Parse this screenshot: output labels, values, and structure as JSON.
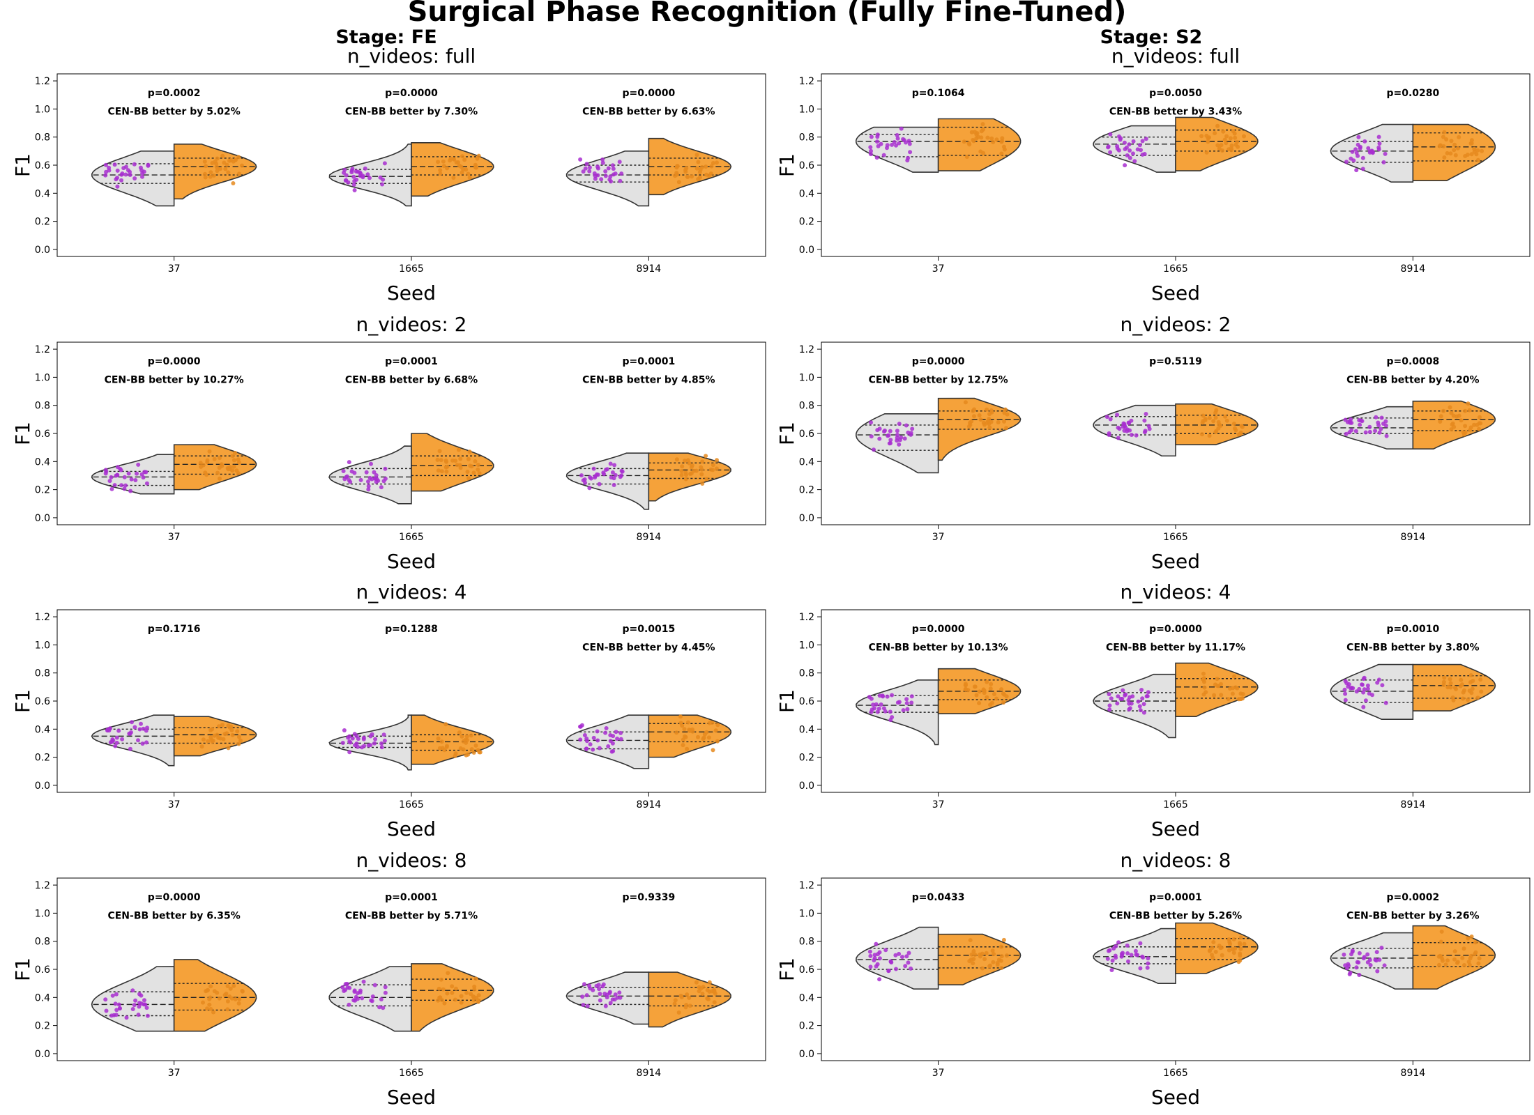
{
  "figure": {
    "suptitle": "Surgical Phase Recognition (Fully Fine-Tuned)",
    "colors": {
      "baseline": "#e2e2e2",
      "cen_bb": "#f5a23a",
      "baseline_points": "#a82ed0",
      "cen_bb_points": "#e58a1f"
    }
  },
  "chart_data": [
    {
      "type": "split-violin",
      "stage": "Stage: FE",
      "title": "n_videos: full",
      "xlabel": "Seed",
      "ylabel": "F1",
      "ylim": [
        -0.05,
        1.25
      ],
      "yticks": [
        0.0,
        0.2,
        0.4,
        0.6,
        0.8,
        1.0,
        1.2
      ],
      "categories": [
        "37",
        "1665",
        "8914"
      ],
      "groups": [
        {
          "seed": "37",
          "p": "p=0.0002",
          "note": "CEN-BB better by 5.02%",
          "left": {
            "min": 0.31,
            "max": 0.7,
            "q1": 0.47,
            "median": 0.53,
            "q3": 0.61
          },
          "right": {
            "min": 0.36,
            "max": 0.75,
            "q1": 0.53,
            "median": 0.59,
            "q3": 0.65
          }
        },
        {
          "seed": "1665",
          "p": "p=0.0000",
          "note": "CEN-BB better by 7.30%",
          "left": {
            "min": 0.31,
            "max": 0.75,
            "q1": 0.47,
            "median": 0.52,
            "q3": 0.57
          },
          "right": {
            "min": 0.38,
            "max": 0.76,
            "q1": 0.53,
            "median": 0.59,
            "q3": 0.66
          }
        },
        {
          "seed": "8914",
          "p": "p=0.0000",
          "note": "CEN-BB better by 6.63%",
          "left": {
            "min": 0.31,
            "max": 0.7,
            "q1": 0.48,
            "median": 0.53,
            "q3": 0.6
          },
          "right": {
            "min": 0.39,
            "max": 0.79,
            "q1": 0.53,
            "median": 0.59,
            "q3": 0.65
          }
        }
      ]
    },
    {
      "type": "split-violin",
      "stage": "Stage: S2",
      "title": "n_videos: full",
      "xlabel": "Seed",
      "ylabel": "F1",
      "ylim": [
        -0.05,
        1.25
      ],
      "yticks": [
        0.0,
        0.2,
        0.4,
        0.6,
        0.8,
        1.0,
        1.2
      ],
      "categories": [
        "37",
        "1665",
        "8914"
      ],
      "groups": [
        {
          "seed": "37",
          "p": "p=0.1064",
          "note": "",
          "left": {
            "min": 0.55,
            "max": 0.87,
            "q1": 0.66,
            "median": 0.77,
            "q3": 0.82
          },
          "right": {
            "min": 0.56,
            "max": 0.93,
            "q1": 0.67,
            "median": 0.77,
            "q3": 0.87
          }
        },
        {
          "seed": "1665",
          "p": "p=0.0050",
          "note": "CEN-BB better by 3.43%",
          "left": {
            "min": 0.55,
            "max": 0.88,
            "q1": 0.67,
            "median": 0.75,
            "q3": 0.8
          },
          "right": {
            "min": 0.56,
            "max": 0.94,
            "q1": 0.7,
            "median": 0.77,
            "q3": 0.85
          }
        },
        {
          "seed": "8914",
          "p": "p=0.0280",
          "note": "",
          "left": {
            "min": 0.48,
            "max": 0.89,
            "q1": 0.62,
            "median": 0.7,
            "q3": 0.77
          },
          "right": {
            "min": 0.49,
            "max": 0.89,
            "q1": 0.63,
            "median": 0.73,
            "q3": 0.83
          }
        }
      ]
    },
    {
      "type": "split-violin",
      "stage": "",
      "title": "n_videos: 2",
      "xlabel": "Seed",
      "ylabel": "F1",
      "ylim": [
        -0.05,
        1.25
      ],
      "yticks": [
        0.0,
        0.2,
        0.4,
        0.6,
        0.8,
        1.0,
        1.2
      ],
      "categories": [
        "37",
        "1665",
        "8914"
      ],
      "groups": [
        {
          "seed": "37",
          "p": "p=0.0000",
          "note": "CEN-BB better by 10.27%",
          "left": {
            "min": 0.17,
            "max": 0.45,
            "q1": 0.23,
            "median": 0.29,
            "q3": 0.33
          },
          "right": {
            "min": 0.2,
            "max": 0.52,
            "q1": 0.31,
            "median": 0.38,
            "q3": 0.44
          }
        },
        {
          "seed": "1665",
          "p": "p=0.0001",
          "note": "CEN-BB better by 6.68%",
          "left": {
            "min": 0.1,
            "max": 0.51,
            "q1": 0.24,
            "median": 0.29,
            "q3": 0.35
          },
          "right": {
            "min": 0.19,
            "max": 0.6,
            "q1": 0.3,
            "median": 0.37,
            "q3": 0.44
          }
        },
        {
          "seed": "8914",
          "p": "p=0.0001",
          "note": "CEN-BB better by 4.85%",
          "left": {
            "min": 0.06,
            "max": 0.46,
            "q1": 0.24,
            "median": 0.3,
            "q3": 0.35
          },
          "right": {
            "min": 0.12,
            "max": 0.46,
            "q1": 0.28,
            "median": 0.34,
            "q3": 0.39
          }
        }
      ]
    },
    {
      "type": "split-violin",
      "stage": "",
      "title": "n_videos: 2",
      "xlabel": "Seed",
      "ylabel": "F1",
      "ylim": [
        -0.05,
        1.25
      ],
      "yticks": [
        0.0,
        0.2,
        0.4,
        0.6,
        0.8,
        1.0,
        1.2
      ],
      "categories": [
        "37",
        "1665",
        "8914"
      ],
      "groups": [
        {
          "seed": "37",
          "p": "p=0.0000",
          "note": "CEN-BB better by 12.75%",
          "left": {
            "min": 0.32,
            "max": 0.74,
            "q1": 0.48,
            "median": 0.59,
            "q3": 0.66
          },
          "right": {
            "min": 0.41,
            "max": 0.85,
            "q1": 0.63,
            "median": 0.7,
            "q3": 0.76
          }
        },
        {
          "seed": "1665",
          "p": "p=0.5119",
          "note": "",
          "left": {
            "min": 0.44,
            "max": 0.8,
            "q1": 0.59,
            "median": 0.66,
            "q3": 0.72
          },
          "right": {
            "min": 0.52,
            "max": 0.81,
            "q1": 0.6,
            "median": 0.66,
            "q3": 0.73
          }
        },
        {
          "seed": "8914",
          "p": "p=0.0008",
          "note": "CEN-BB better by 4.20%",
          "left": {
            "min": 0.49,
            "max": 0.79,
            "q1": 0.6,
            "median": 0.64,
            "q3": 0.71
          },
          "right": {
            "min": 0.49,
            "max": 0.83,
            "q1": 0.62,
            "median": 0.7,
            "q3": 0.76
          }
        }
      ]
    },
    {
      "type": "split-violin",
      "stage": "",
      "title": "n_videos: 4",
      "xlabel": "Seed",
      "ylabel": "F1",
      "ylim": [
        -0.05,
        1.25
      ],
      "yticks": [
        0.0,
        0.2,
        0.4,
        0.6,
        0.8,
        1.0,
        1.2
      ],
      "categories": [
        "37",
        "1665",
        "8914"
      ],
      "groups": [
        {
          "seed": "37",
          "p": "p=0.1716",
          "note": "",
          "left": {
            "min": 0.14,
            "max": 0.5,
            "q1": 0.3,
            "median": 0.35,
            "q3": 0.4
          },
          "right": {
            "min": 0.21,
            "max": 0.49,
            "q1": 0.3,
            "median": 0.36,
            "q3": 0.41
          }
        },
        {
          "seed": "1665",
          "p": "p=0.1288",
          "note": "",
          "left": {
            "min": 0.11,
            "max": 0.5,
            "q1": 0.27,
            "median": 0.3,
            "q3": 0.35
          },
          "right": {
            "min": 0.15,
            "max": 0.5,
            "q1": 0.25,
            "median": 0.31,
            "q3": 0.36
          }
        },
        {
          "seed": "8914",
          "p": "p=0.0015",
          "note": "CEN-BB better by 4.45%",
          "left": {
            "min": 0.12,
            "max": 0.5,
            "q1": 0.26,
            "median": 0.32,
            "q3": 0.38
          },
          "right": {
            "min": 0.2,
            "max": 0.5,
            "q1": 0.31,
            "median": 0.38,
            "q3": 0.44
          }
        }
      ]
    },
    {
      "type": "split-violin",
      "stage": "",
      "title": "n_videos: 4",
      "xlabel": "Seed",
      "ylabel": "F1",
      "ylim": [
        -0.05,
        1.25
      ],
      "yticks": [
        0.0,
        0.2,
        0.4,
        0.6,
        0.8,
        1.0,
        1.2
      ],
      "categories": [
        "37",
        "1665",
        "8914"
      ],
      "groups": [
        {
          "seed": "37",
          "p": "p=0.0000",
          "note": "CEN-BB better by 10.13%",
          "left": {
            "min": 0.29,
            "max": 0.75,
            "q1": 0.52,
            "median": 0.57,
            "q3": 0.64
          },
          "right": {
            "min": 0.51,
            "max": 0.83,
            "q1": 0.61,
            "median": 0.67,
            "q3": 0.75
          }
        },
        {
          "seed": "1665",
          "p": "p=0.0000",
          "note": "CEN-BB better by 11.17%",
          "left": {
            "min": 0.34,
            "max": 0.79,
            "q1": 0.53,
            "median": 0.6,
            "q3": 0.66
          },
          "right": {
            "min": 0.49,
            "max": 0.87,
            "q1": 0.62,
            "median": 0.7,
            "q3": 0.76
          }
        },
        {
          "seed": "8914",
          "p": "p=0.0010",
          "note": "CEN-BB better by 3.80%",
          "left": {
            "min": 0.47,
            "max": 0.86,
            "q1": 0.59,
            "median": 0.67,
            "q3": 0.75
          },
          "right": {
            "min": 0.53,
            "max": 0.86,
            "q1": 0.62,
            "median": 0.71,
            "q3": 0.78
          }
        }
      ]
    },
    {
      "type": "split-violin",
      "stage": "",
      "title": "n_videos: 8",
      "xlabel": "Seed",
      "ylabel": "F1",
      "ylim": [
        -0.05,
        1.25
      ],
      "yticks": [
        0.0,
        0.2,
        0.4,
        0.6,
        0.8,
        1.0,
        1.2
      ],
      "categories": [
        "37",
        "1665",
        "8914"
      ],
      "groups": [
        {
          "seed": "37",
          "p": "p=0.0000",
          "note": "CEN-BB better by 6.35%",
          "left": {
            "min": 0.16,
            "max": 0.62,
            "q1": 0.27,
            "median": 0.35,
            "q3": 0.44
          },
          "right": {
            "min": 0.16,
            "max": 0.67,
            "q1": 0.31,
            "median": 0.4,
            "q3": 0.5
          }
        },
        {
          "seed": "1665",
          "p": "p=0.0001",
          "note": "CEN-BB better by 5.71%",
          "left": {
            "min": 0.16,
            "max": 0.62,
            "q1": 0.34,
            "median": 0.4,
            "q3": 0.49
          },
          "right": {
            "min": 0.16,
            "max": 0.64,
            "q1": 0.38,
            "median": 0.45,
            "q3": 0.53
          }
        },
        {
          "seed": "8914",
          "p": "p=0.9339",
          "note": "",
          "left": {
            "min": 0.21,
            "max": 0.58,
            "q1": 0.35,
            "median": 0.41,
            "q3": 0.47
          },
          "right": {
            "min": 0.19,
            "max": 0.58,
            "q1": 0.34,
            "median": 0.41,
            "q3": 0.47
          }
        }
      ]
    },
    {
      "type": "split-violin",
      "stage": "",
      "title": "n_videos: 8",
      "xlabel": "Seed",
      "ylabel": "F1",
      "ylim": [
        -0.05,
        1.25
      ],
      "yticks": [
        0.0,
        0.2,
        0.4,
        0.6,
        0.8,
        1.0,
        1.2
      ],
      "categories": [
        "37",
        "1665",
        "8914"
      ],
      "groups": [
        {
          "seed": "37",
          "p": "p=0.0433",
          "note": "",
          "left": {
            "min": 0.46,
            "max": 0.9,
            "q1": 0.6,
            "median": 0.67,
            "q3": 0.75
          },
          "right": {
            "min": 0.49,
            "max": 0.85,
            "q1": 0.61,
            "median": 0.7,
            "q3": 0.76
          }
        },
        {
          "seed": "1665",
          "p": "p=0.0001",
          "note": "CEN-BB better by 5.26%",
          "left": {
            "min": 0.5,
            "max": 0.89,
            "q1": 0.64,
            "median": 0.69,
            "q3": 0.76
          },
          "right": {
            "min": 0.57,
            "max": 0.93,
            "q1": 0.67,
            "median": 0.76,
            "q3": 0.82
          }
        },
        {
          "seed": "8914",
          "p": "p=0.0002",
          "note": "CEN-BB better by 3.26%",
          "left": {
            "min": 0.46,
            "max": 0.86,
            "q1": 0.61,
            "median": 0.68,
            "q3": 0.75
          },
          "right": {
            "min": 0.46,
            "max": 0.91,
            "q1": 0.62,
            "median": 0.7,
            "q3": 0.79
          }
        }
      ]
    }
  ]
}
